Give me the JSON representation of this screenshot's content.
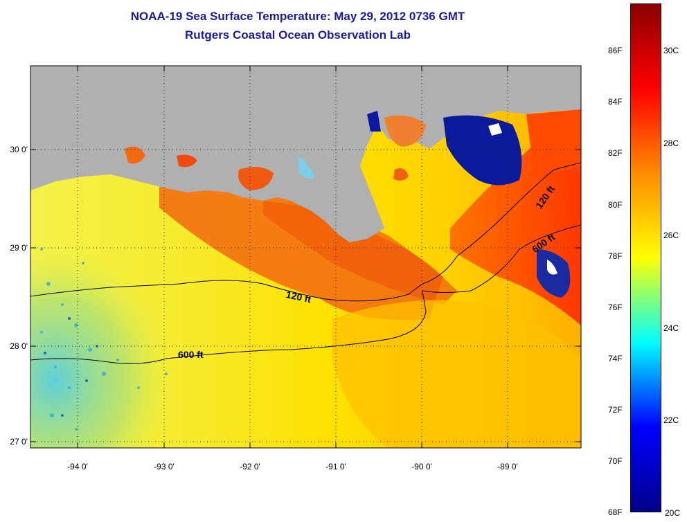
{
  "title": {
    "line1": "NOAA-19 Sea Surface Temperature:  May 29, 2012 0736 GMT",
    "line2": "Rutgers Coastal Ocean Observation Lab"
  },
  "map": {
    "lat_labels": [
      "30 0'",
      "29 0'",
      "28 0'",
      "27 0'"
    ],
    "lon_labels": [
      "-94 0'",
      "-93 0'",
      "-92 0'",
      "-91 0'",
      "-90 0'",
      "-89 0'"
    ],
    "contour_labels": {
      "shelf_120_west": "120 ft",
      "shelf_600_west": "600 ft",
      "shelf_120_east": "120 ft",
      "shelf_600_east": "600 ft"
    },
    "land_color": "#b0b0b0",
    "grid": "dotted"
  },
  "colorbar": {
    "fahrenheit_labels": [
      "86F",
      "84F",
      "82F",
      "80F",
      "78F",
      "76F",
      "74F",
      "72F",
      "70F",
      "68F"
    ],
    "celsius_labels": [
      "30C",
      "28C",
      "26C",
      "24C",
      "22C",
      "20C"
    ],
    "colors": [
      "#8b0000",
      "#ff0000",
      "#ff8c00",
      "#ffff00",
      "#00ffff",
      "#0000ff",
      "#00008b"
    ]
  }
}
